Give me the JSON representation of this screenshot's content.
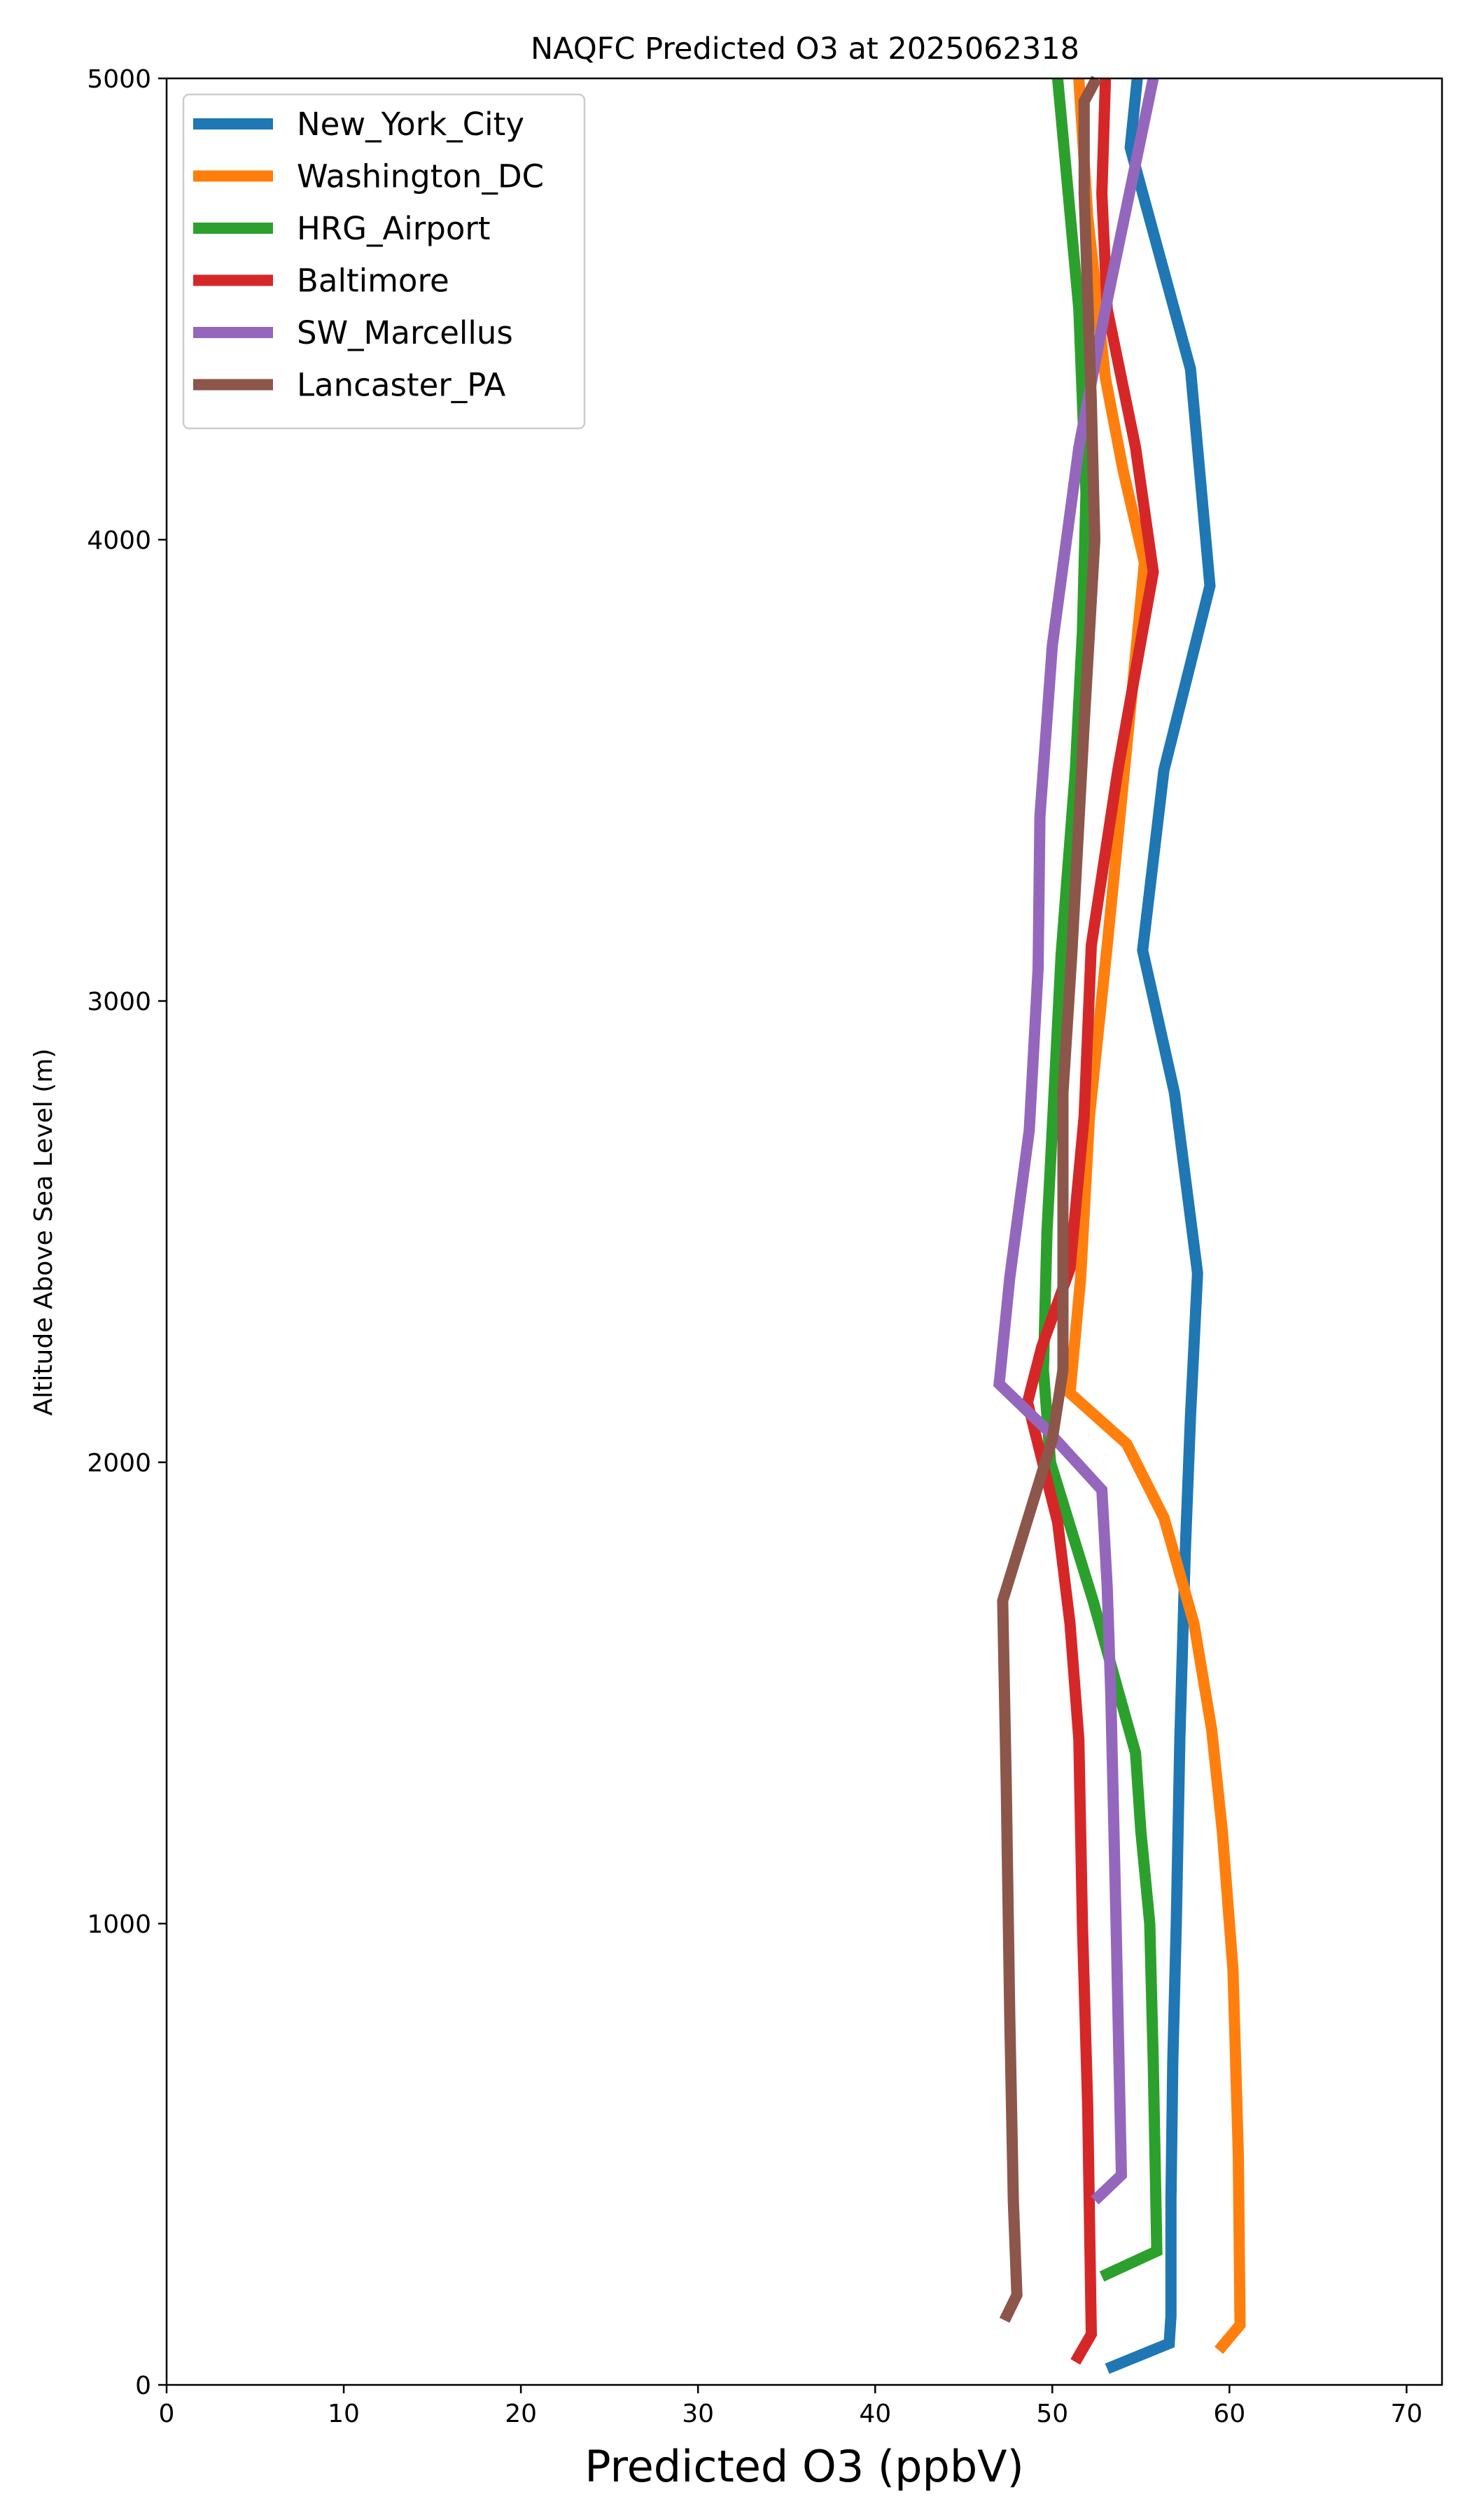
{
  "chart_data": {
    "type": "line",
    "title": "NAQFC Predicted O3 at 2025062318",
    "xlabel": "Predicted O3 (ppbV)",
    "ylabel": "Altitude Above Sea Level (m)",
    "xlim": [
      0,
      72
    ],
    "ylim": [
      0,
      5000
    ],
    "xticks": [
      0,
      10,
      20,
      30,
      40,
      50,
      60,
      70
    ],
    "yticks": [
      0,
      1000,
      2000,
      3000,
      4000,
      5000
    ],
    "grid": false,
    "legend_position": "upper-left",
    "series": [
      {
        "name": "New_York_City",
        "color": "#1f77b4",
        "points": [
          [
            53.1,
            35
          ],
          [
            56.6,
            90
          ],
          [
            56.7,
            150
          ],
          [
            56.7,
            400
          ],
          [
            56.8,
            700
          ],
          [
            57.0,
            1000
          ],
          [
            57.2,
            1400
          ],
          [
            57.5,
            1800
          ],
          [
            57.8,
            2100
          ],
          [
            58.2,
            2410
          ],
          [
            56.9,
            2800
          ],
          [
            55.1,
            3110
          ],
          [
            56.3,
            3500
          ],
          [
            58.9,
            3900
          ],
          [
            57.8,
            4370
          ],
          [
            54.4,
            4850
          ],
          [
            54.8,
            5000
          ]
        ]
      },
      {
        "name": "Washington_DC",
        "color": "#ff7f0e",
        "points": [
          [
            59.4,
            75
          ],
          [
            60.6,
            130
          ],
          [
            60.5,
            500
          ],
          [
            60.2,
            900
          ],
          [
            59.6,
            1200
          ],
          [
            59.0,
            1420
          ],
          [
            58.0,
            1650
          ],
          [
            56.3,
            1880
          ],
          [
            54.2,
            2040
          ],
          [
            51.0,
            2150
          ],
          [
            51.6,
            2400
          ],
          [
            52.1,
            2750
          ],
          [
            53.1,
            3120
          ],
          [
            54.2,
            3550
          ],
          [
            55.2,
            3950
          ],
          [
            54.0,
            4150
          ],
          [
            53.0,
            4350
          ],
          [
            52.0,
            4700
          ],
          [
            51.5,
            5000
          ]
        ]
      },
      {
        "name": "HRG_Airport",
        "color": "#2ca02c",
        "points": [
          [
            52.8,
            235
          ],
          [
            55.9,
            290
          ],
          [
            55.7,
            700
          ],
          [
            55.5,
            1000
          ],
          [
            55.0,
            1200
          ],
          [
            54.7,
            1370
          ],
          [
            52.3,
            1700
          ],
          [
            49.9,
            2000
          ],
          [
            49.5,
            2200
          ],
          [
            49.7,
            2500
          ],
          [
            50.1,
            2800
          ],
          [
            50.5,
            3100
          ],
          [
            51.3,
            3500
          ],
          [
            51.7,
            3800
          ],
          [
            51.9,
            4100
          ],
          [
            51.5,
            4500
          ],
          [
            50.3,
            5000
          ]
        ]
      },
      {
        "name": "Baltimore",
        "color": "#d62728",
        "points": [
          [
            51.3,
            50
          ],
          [
            52.2,
            110
          ],
          [
            52.0,
            600
          ],
          [
            51.7,
            1000
          ],
          [
            51.5,
            1400
          ],
          [
            51.0,
            1650
          ],
          [
            50.3,
            1870
          ],
          [
            48.6,
            2130
          ],
          [
            49.4,
            2250
          ],
          [
            51.0,
            2420
          ],
          [
            51.8,
            2750
          ],
          [
            52.2,
            3120
          ],
          [
            53.7,
            3500
          ],
          [
            55.7,
            3930
          ],
          [
            54.7,
            4200
          ],
          [
            53.1,
            4500
          ],
          [
            52.8,
            4750
          ],
          [
            53.0,
            5000
          ]
        ]
      },
      {
        "name": "SW_Marcellus",
        "color": "#9467bd",
        "points": [
          [
            52.4,
            400
          ],
          [
            53.9,
            455
          ],
          [
            53.6,
            1000
          ],
          [
            53.3,
            1500
          ],
          [
            53.1,
            1730
          ],
          [
            52.8,
            1940
          ],
          [
            49.7,
            2070
          ],
          [
            47.0,
            2170
          ],
          [
            47.6,
            2400
          ],
          [
            48.7,
            2720
          ],
          [
            49.2,
            3070
          ],
          [
            49.3,
            3400
          ],
          [
            50.0,
            3770
          ],
          [
            51.5,
            4200
          ],
          [
            53.0,
            4500
          ],
          [
            55.7,
            5000
          ]
        ]
      },
      {
        "name": "Lancaster_PA",
        "color": "#8c564b",
        "points": [
          [
            47.3,
            140
          ],
          [
            48.0,
            195
          ],
          [
            47.8,
            400
          ],
          [
            47.6,
            800
          ],
          [
            47.4,
            1300
          ],
          [
            47.2,
            1700
          ],
          [
            50.0,
            2050
          ],
          [
            50.6,
            2200
          ],
          [
            50.6,
            2500
          ],
          [
            50.6,
            2800
          ],
          [
            51.1,
            3100
          ],
          [
            51.8,
            3600
          ],
          [
            52.4,
            4000
          ],
          [
            52.2,
            4300
          ],
          [
            51.8,
            4750
          ],
          [
            51.8,
            4950
          ],
          [
            52.5,
            5000
          ]
        ]
      }
    ]
  }
}
